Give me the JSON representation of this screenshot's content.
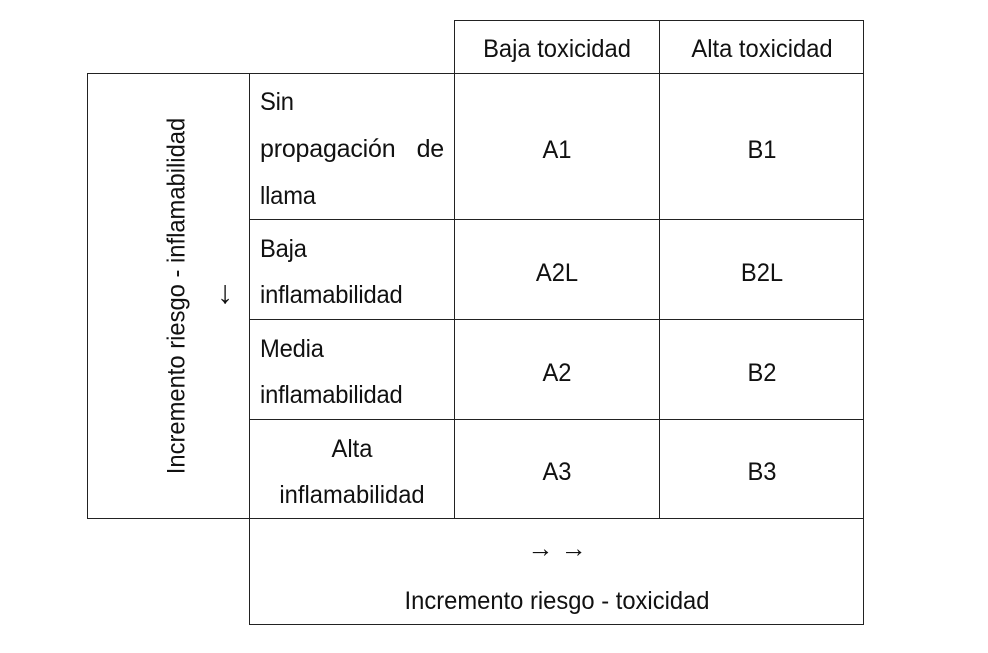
{
  "columns": {
    "low_toxicity": "Baja toxicidad",
    "high_toxicity": "Alta toxicidad"
  },
  "row_axis_label": "Incremento riesgo - inflamabilidad",
  "row_axis_arrow": "↓",
  "rows": [
    {
      "label_lines": [
        "Sin",
        "propagación",
        "de",
        "llama"
      ],
      "a": "A1",
      "b": "B1"
    },
    {
      "label_lines": [
        "Baja",
        "inflamabilidad"
      ],
      "a": "A2L",
      "b": "B2L"
    },
    {
      "label_lines": [
        "Media",
        "inflamabilidad"
      ],
      "a": "A2",
      "b": "B2"
    },
    {
      "label_lines": [
        "Alta",
        "inflamabilidad"
      ],
      "a": "A3",
      "b": "B3"
    }
  ],
  "col_axis_arrows": "→ →",
  "col_axis_label": "Incremento riesgo - toxicidad"
}
